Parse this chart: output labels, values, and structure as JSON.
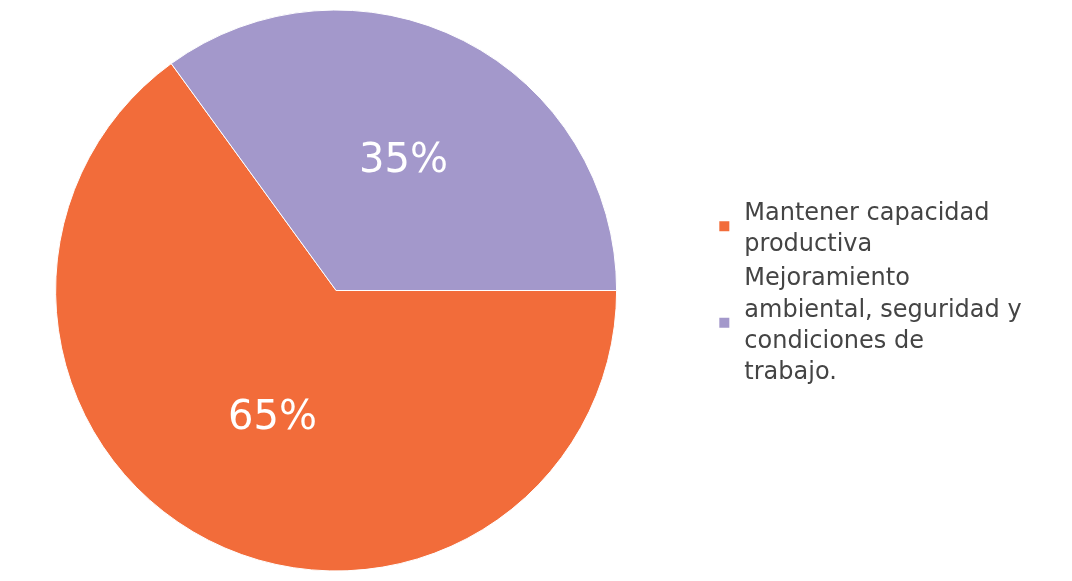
{
  "chart_data": {
    "type": "pie",
    "categories": [
      "Mantener capacidad productiva",
      "Mejoramiento ambiental, seguridad y condiciones de trabajo."
    ],
    "values": [
      65,
      35
    ],
    "colors": [
      "#f26c3a",
      "#a398cb"
    ],
    "value_labels": [
      "65%",
      "35%"
    ],
    "legend": "right"
  }
}
